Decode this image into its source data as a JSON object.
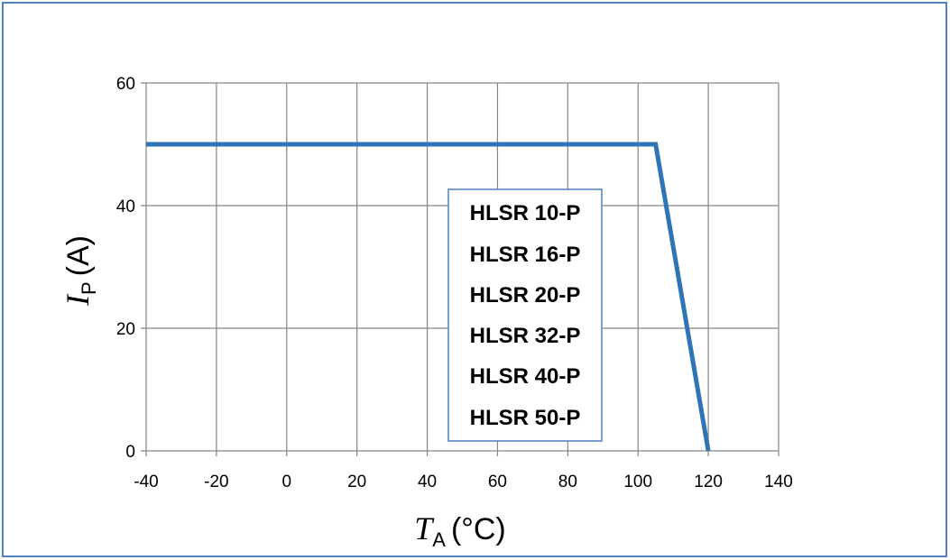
{
  "chart_data": {
    "type": "line",
    "x": [
      -40,
      105,
      120
    ],
    "series": [
      {
        "values": [
          50,
          50,
          0
        ],
        "color": "#2e75b6"
      }
    ],
    "xlim": [
      -40,
      140
    ],
    "ylim": [
      0,
      60
    ],
    "xticks": [
      -40,
      -20,
      0,
      20,
      40,
      60,
      80,
      100,
      120,
      140
    ],
    "yticks": [
      0,
      20,
      40,
      60
    ],
    "xlabel": {
      "symbol": "T",
      "subscript": "A",
      "unit": "(°C)"
    },
    "ylabel": {
      "symbol": "I",
      "subscript": "P",
      "unit": "(A)"
    },
    "grid": true,
    "legend_box": {
      "placement": "center-right",
      "entries": [
        "HLSR 10-P",
        "HLSR 16-P",
        "HLSR 20-P",
        "HLSR 32-P",
        "HLSR 40-P",
        "HLSR 50-P"
      ],
      "border_color": "#4f81bd"
    },
    "frame_color": "#4f81bd"
  }
}
